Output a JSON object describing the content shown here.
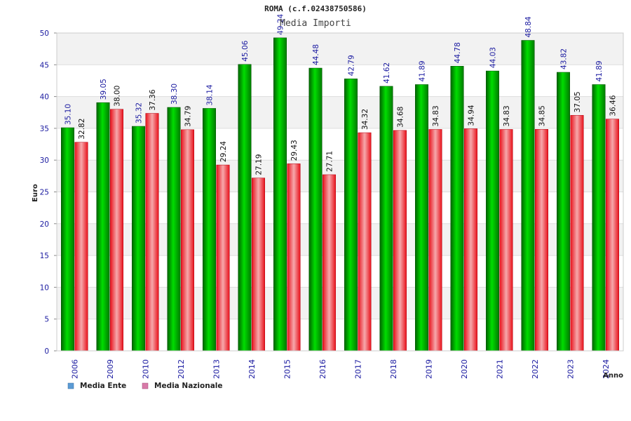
{
  "chart_data": {
    "type": "bar",
    "title": "ROMA (c.f.02438750586)",
    "subtitle": "Media Importi",
    "xlabel": "Anno",
    "ylabel": "Euro",
    "ylim": [
      0,
      50
    ],
    "yticks": [
      0,
      5,
      10,
      15,
      20,
      25,
      30,
      35,
      40,
      45,
      50
    ],
    "grid": true,
    "legend_position": "bottom-left",
    "categories": [
      "2006",
      "2009",
      "2010",
      "2012",
      "2013",
      "2014",
      "2015",
      "2016",
      "2017",
      "2018",
      "2019",
      "2020",
      "2021",
      "2022",
      "2023",
      "2024"
    ],
    "series": [
      {
        "name": "Media Ente",
        "color": "#00aa00",
        "legend_color": "#5b9bd5",
        "values": [
          35.1,
          39.05,
          35.32,
          38.3,
          38.14,
          45.06,
          49.24,
          44.48,
          42.79,
          41.62,
          41.89,
          44.78,
          44.03,
          48.84,
          43.82,
          41.89
        ],
        "labels": [
          "35.10",
          "39.05",
          "35.32",
          "38.30",
          "38.14",
          "45.06",
          "49.24",
          "44.48",
          "42.79",
          "41.62",
          "41.89",
          "44.78",
          "44.03",
          "48.84",
          "43.82",
          "41.89"
        ]
      },
      {
        "name": "Media Nazionale",
        "color": "#e8121b",
        "legend_color": "#d87aa8",
        "values": [
          32.82,
          38.0,
          37.36,
          34.79,
          29.24,
          27.19,
          29.43,
          27.71,
          34.32,
          34.68,
          34.83,
          34.94,
          34.83,
          34.85,
          37.05,
          36.46
        ],
        "labels": [
          "32.82",
          "38.00",
          "37.36",
          "34.79",
          "29.24",
          "27.19",
          "29.43",
          "27.71",
          "34.32",
          "34.68",
          "34.83",
          "34.94",
          "34.83",
          "34.85",
          "37.05",
          "36.46"
        ]
      }
    ]
  }
}
